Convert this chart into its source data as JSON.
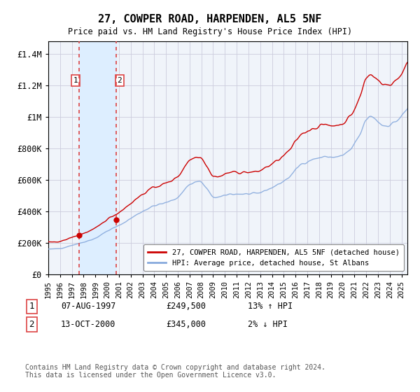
{
  "title": "27, COWPER ROAD, HARPENDEN, AL5 5NF",
  "subtitle": "Price paid vs. HM Land Registry's House Price Index (HPI)",
  "ylabel_ticks": [
    "£0",
    "£200K",
    "£400K",
    "£600K",
    "£800K",
    "£1M",
    "£1.2M",
    "£1.4M"
  ],
  "ytick_values": [
    0,
    200000,
    400000,
    600000,
    800000,
    1000000,
    1200000,
    1400000
  ],
  "ylim": [
    0,
    1480000
  ],
  "xlim_start": 1995.0,
  "xlim_end": 2025.5,
  "xtick_years": [
    1995,
    1996,
    1997,
    1998,
    1999,
    2000,
    2001,
    2002,
    2003,
    2004,
    2005,
    2006,
    2007,
    2008,
    2009,
    2010,
    2011,
    2012,
    2013,
    2014,
    2015,
    2016,
    2017,
    2018,
    2019,
    2020,
    2021,
    2022,
    2023,
    2024,
    2025
  ],
  "transaction1_year": 1997.6,
  "transaction1_price": 249500,
  "transaction2_year": 2000.78,
  "transaction2_price": 345000,
  "transaction1_date": "07-AUG-1997",
  "transaction1_price_str": "£249,500",
  "transaction1_hpi": "13% ↑ HPI",
  "transaction2_date": "13-OCT-2000",
  "transaction2_price_str": "£345,000",
  "transaction2_hpi": "2% ↓ HPI",
  "red_line_color": "#cc0000",
  "blue_line_color": "#88aadd",
  "dashed_color": "#dd4444",
  "shade_color": "#ddeeff",
  "legend_line1": "27, COWPER ROAD, HARPENDEN, AL5 5NF (detached house)",
  "legend_line2": "HPI: Average price, detached house, St Albans",
  "footer": "Contains HM Land Registry data © Crown copyright and database right 2024.\nThis data is licensed under the Open Government Licence v3.0.",
  "background_color": "#ffffff",
  "plot_bg_color": "#f0f4fa",
  "grid_color": "#ccccdd"
}
